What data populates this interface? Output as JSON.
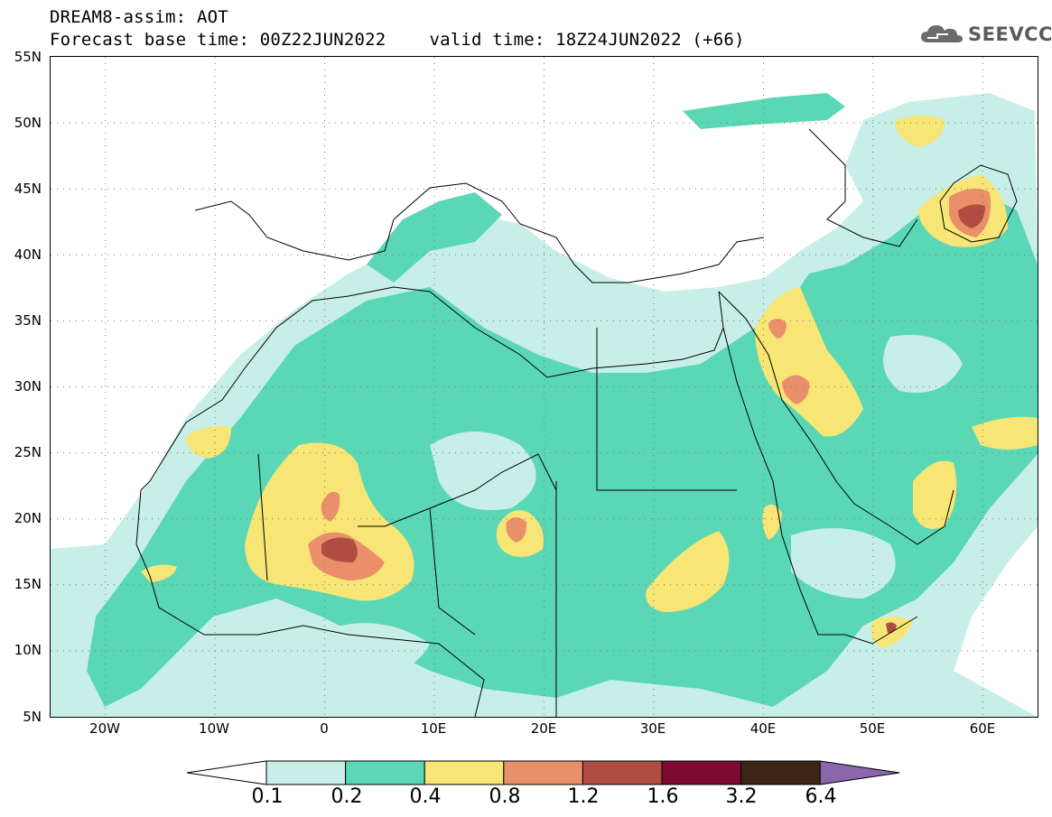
{
  "header": {
    "title": "DREAM8-assim: AOT",
    "base_time": "Forecast base time: 00Z22JUN2022",
    "valid_time": "valid time: 18Z24JUN2022 (+66)"
  },
  "logo": {
    "text": "SEEVCCC",
    "icon": "cloud-icon"
  },
  "map": {
    "lat_labels": [
      "55N",
      "50N",
      "45N",
      "40N",
      "35N",
      "30N",
      "25N",
      "20N",
      "15N",
      "10N",
      "5N"
    ],
    "lon_labels": [
      "20W",
      "10W",
      "0",
      "10E",
      "20E",
      "30E",
      "40E",
      "50E",
      "60E"
    ],
    "lat_range": [
      5,
      55
    ],
    "lon_range": [
      -25,
      65
    ],
    "grid": "dotted"
  },
  "colorbar": {
    "labels": [
      "0.1",
      "0.2",
      "0.4",
      "0.8",
      "1.2",
      "1.6",
      "3.2",
      "6.4"
    ],
    "colors": [
      "#ffffff",
      "#c7efe8",
      "#5ad7b5",
      "#f7e575",
      "#e9906a",
      "#b04d42",
      "#7e0a32",
      "#3c2515",
      "#8c66ac"
    ]
  },
  "colors": {
    "low": "#c7efe8",
    "mid": "#5ad7b5",
    "high": "#f7e575",
    "higher": "#e9906a",
    "peak": "#b04d42"
  }
}
